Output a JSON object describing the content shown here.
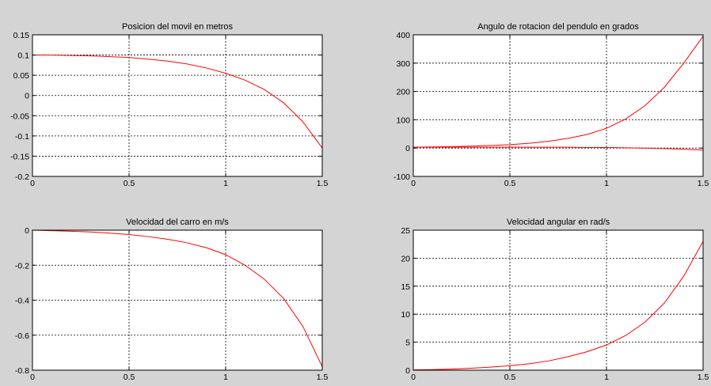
{
  "figure": {
    "background": "#d4d4d4",
    "line_color": "#ff0000"
  },
  "chart_data": [
    {
      "type": "line",
      "title": "Posicion del movil en metros",
      "xlabel": "",
      "ylabel": "",
      "xlim": [
        0,
        1.5
      ],
      "ylim": [
        -0.2,
        0.15
      ],
      "xticks": [
        0,
        0.5,
        1,
        1.5
      ],
      "xtick_labels": [
        "0",
        "0.5",
        "1",
        "1.5"
      ],
      "yticks": [
        -0.2,
        -0.15,
        -0.1,
        -0.05,
        0,
        0.05,
        0.1,
        0.15
      ],
      "ytick_labels": [
        "-0.2",
        "-0.15",
        "-0.1",
        "-0.05",
        "0",
        "0.05",
        "0.1",
        "0.15"
      ],
      "grid": true,
      "series": [
        {
          "color": "#ff0000",
          "x": [
            0,
            0.1,
            0.2,
            0.3,
            0.4,
            0.5,
            0.6,
            0.7,
            0.8,
            0.9,
            1.0,
            1.1,
            1.2,
            1.3,
            1.4,
            1.5
          ],
          "y": [
            0.1,
            0.1,
            0.099,
            0.098,
            0.096,
            0.094,
            0.09,
            0.085,
            0.078,
            0.068,
            0.055,
            0.038,
            0.015,
            -0.018,
            -0.065,
            -0.13
          ]
        }
      ]
    },
    {
      "type": "line",
      "title": "Angulo de rotacion del pendulo en grados",
      "xlabel": "",
      "ylabel": "",
      "xlim": [
        0,
        1.5
      ],
      "ylim": [
        -100,
        400
      ],
      "xticks": [
        0,
        0.5,
        1,
        1.5
      ],
      "xtick_labels": [
        "0",
        "0.5",
        "1",
        "1.5"
      ],
      "yticks": [
        -100,
        0,
        100,
        200,
        300,
        400
      ],
      "ytick_labels": [
        "-100",
        "0",
        "100",
        "200",
        "300",
        "400"
      ],
      "grid": true,
      "series": [
        {
          "color": "#ff0000",
          "x": [
            0,
            0.1,
            0.2,
            0.3,
            0.4,
            0.5,
            0.6,
            0.7,
            0.8,
            0.9,
            1.0,
            1.1,
            1.2,
            1.3,
            1.4,
            1.5
          ],
          "y": [
            3,
            4,
            5,
            7,
            9,
            12,
            17,
            24,
            34,
            48,
            70,
            103,
            150,
            215,
            300,
            395
          ]
        },
        {
          "color": "#ff0000",
          "x": [
            0,
            0.1,
            0.2,
            0.3,
            0.4,
            0.5,
            0.6,
            0.7,
            0.8,
            0.9,
            1.0,
            1.1,
            1.2,
            1.3,
            1.4,
            1.5
          ],
          "y": [
            3,
            3,
            3,
            3,
            3,
            3,
            3,
            3,
            3,
            2,
            2,
            1,
            0,
            -2,
            -4,
            -7
          ]
        }
      ]
    },
    {
      "type": "line",
      "title": "Velocidad del carro en m/s",
      "xlabel": "",
      "ylabel": "",
      "xlim": [
        0,
        1.5
      ],
      "ylim": [
        -0.8,
        0
      ],
      "xticks": [
        0,
        0.5,
        1,
        1.5
      ],
      "xtick_labels": [
        "0",
        "0.5",
        "1",
        "1.5"
      ],
      "yticks": [
        -0.8,
        -0.6,
        -0.4,
        -0.2,
        0
      ],
      "ytick_labels": [
        "-0.8",
        "-0.6",
        "-0.4",
        "-0.2",
        "0"
      ],
      "grid": true,
      "series": [
        {
          "color": "#ff0000",
          "x": [
            0,
            0.1,
            0.2,
            0.3,
            0.4,
            0.5,
            0.6,
            0.7,
            0.8,
            0.9,
            1.0,
            1.1,
            1.2,
            1.3,
            1.4,
            1.5
          ],
          "y": [
            0,
            -0.003,
            -0.006,
            -0.01,
            -0.017,
            -0.025,
            -0.037,
            -0.052,
            -0.072,
            -0.1,
            -0.14,
            -0.2,
            -0.28,
            -0.39,
            -0.55,
            -0.78
          ]
        }
      ]
    },
    {
      "type": "line",
      "title": "Velocidad angular en rad/s",
      "xlabel": "",
      "ylabel": "",
      "xlim": [
        0,
        1.5
      ],
      "ylim": [
        0,
        25
      ],
      "xticks": [
        0,
        0.5,
        1,
        1.5
      ],
      "xtick_labels": [
        "0",
        "0.5",
        "1",
        "1.5"
      ],
      "yticks": [
        0,
        5,
        10,
        15,
        20,
        25
      ],
      "ytick_labels": [
        "0",
        "5",
        "10",
        "15",
        "20",
        "25"
      ],
      "grid": true,
      "series": [
        {
          "color": "#ff0000",
          "x": [
            0,
            0.1,
            0.2,
            0.3,
            0.4,
            0.5,
            0.6,
            0.7,
            0.8,
            0.9,
            1.0,
            1.1,
            1.2,
            1.3,
            1.4,
            1.5
          ],
          "y": [
            0.05,
            0.1,
            0.2,
            0.35,
            0.55,
            0.8,
            1.15,
            1.65,
            2.4,
            3.3,
            4.5,
            6.2,
            8.6,
            12,
            16.8,
            23
          ]
        }
      ]
    }
  ]
}
